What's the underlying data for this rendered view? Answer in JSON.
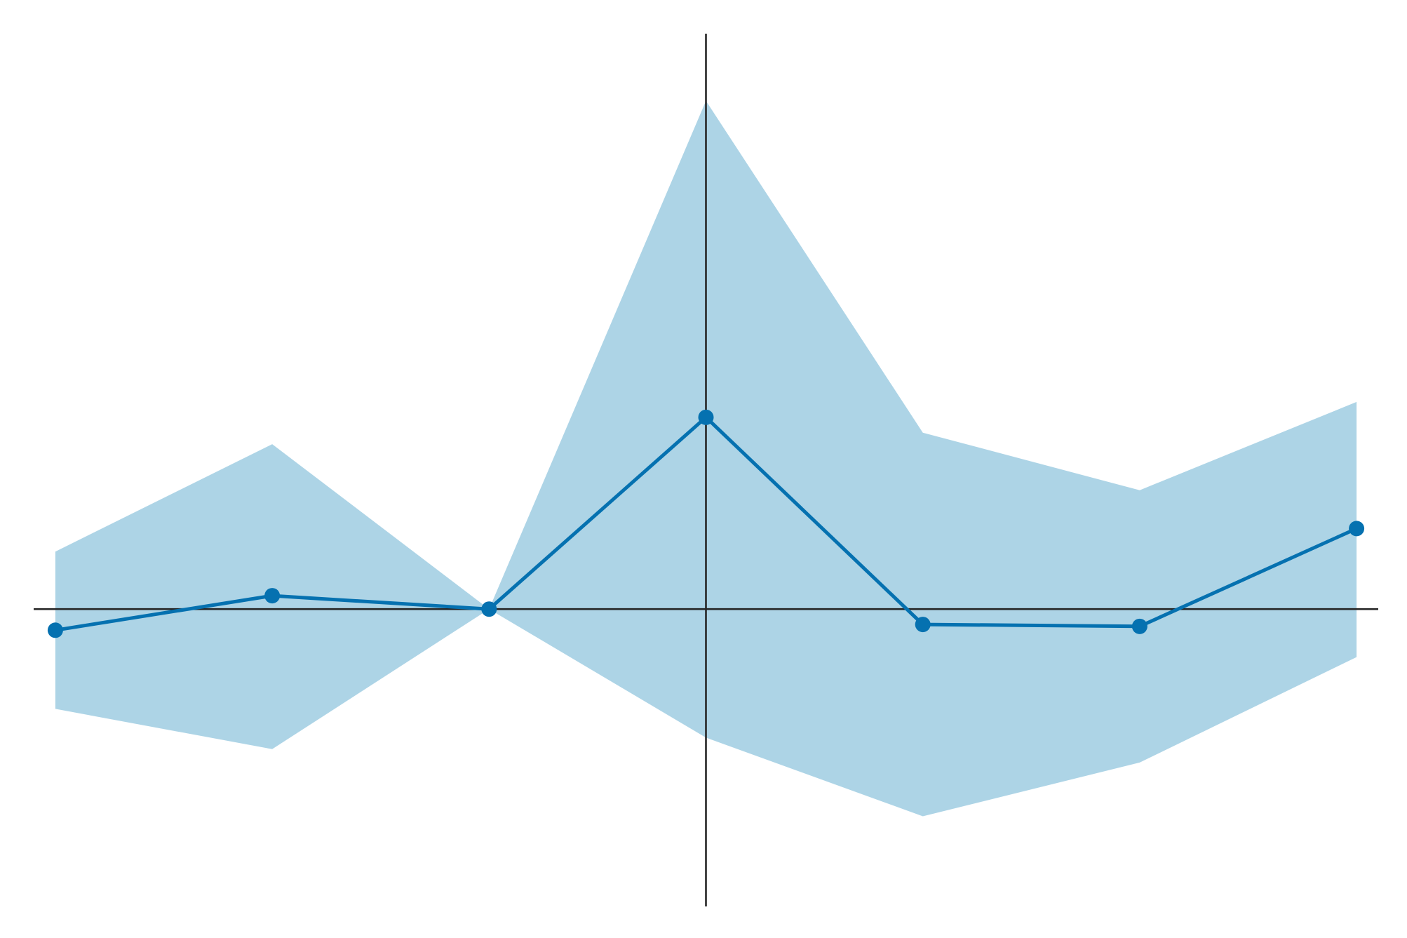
{
  "chart_data": {
    "type": "line",
    "title": "",
    "xlabel": "",
    "ylabel": "",
    "x": [
      -3,
      -2,
      -1,
      0,
      1,
      2,
      3
    ],
    "series": [
      {
        "values": [
          -0.11,
          0.07,
          0.0,
          1.0,
          -0.08,
          -0.09,
          0.42
        ],
        "ci_lower": [
          -0.52,
          -0.73,
          0.0,
          -0.67,
          -1.08,
          -0.8,
          -0.25
        ],
        "ci_upper": [
          0.3,
          0.86,
          0.0,
          2.65,
          0.92,
          0.62,
          1.08
        ]
      }
    ],
    "reference_lines": {
      "x": 0,
      "y": 0
    },
    "xlim": [
      -3.1,
      3.1
    ],
    "ylim": [
      -1.55,
      3.0
    ],
    "grid": false,
    "legend": "none",
    "colors": {
      "line": "#0571b0",
      "band": "#92c5de",
      "axis": "#262626"
    }
  }
}
